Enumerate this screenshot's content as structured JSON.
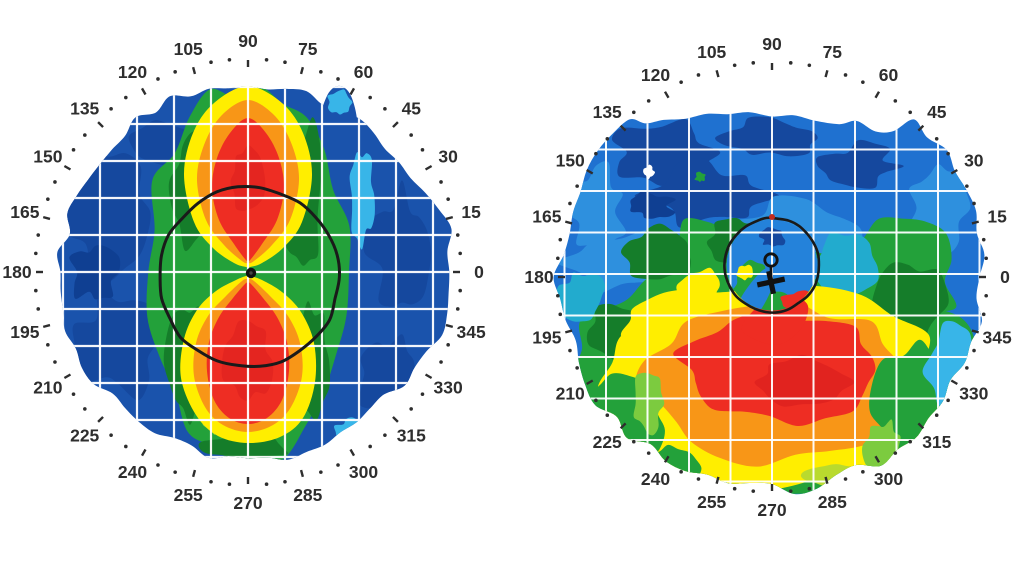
{
  "figure": {
    "kind": "corneal topography axial curvature maps, two panels side by side",
    "background": "#ffffff",
    "degree_labels": [
      0,
      15,
      30,
      45,
      60,
      75,
      90,
      105,
      120,
      135,
      150,
      165,
      180,
      195,
      210,
      225,
      240,
      255,
      270,
      285,
      300,
      315,
      330,
      345
    ],
    "label_step_deg": 15,
    "minor_tick_step_deg": 5,
    "maps": [
      {
        "id": "left",
        "pattern_label": "Symmetric vertical bow-tie pattern (regular astigmatism): red-orange steep lobes above and below centre along the 90-270 meridian, green vertical band, blue nasal and temporal periphery, black pupil circle with black apex marker."
      },
      {
        "id": "right",
        "pattern_label": "Inferior steepening pattern (keratoconus-like): flat blue superior cornea, green mid zone, large red steep zone below centre ringed by orange and yellow, small black pupil circle with circle-and-cross marker."
      }
    ],
    "palette": {
      "background": "#ffffff",
      "left_base_blue": "#1a53ac",
      "right_base_blue": "#1f71d0",
      "dark_blue": "#15489e",
      "navy": "#0f3f92",
      "light_blue": "#2e90de",
      "pupil_blue": "#2482da",
      "cyan": "#38b5e8",
      "teal": "#22abce",
      "green": "#23a13a",
      "dark_green": "#157d2a",
      "light_green": "#7ccb3f",
      "yellow_green": "#b9da2e",
      "yellow": "#ffee00",
      "orange": "#f89617",
      "red": "#ee2d23",
      "dark_red": "#d91d1d",
      "grid_line": "#ffffff",
      "pupil_ring": "#1a1a1a",
      "marker": "#111111",
      "red_tick": "#c22a1e",
      "tick": "#2e2e2e",
      "label_text": "#2e2e2e"
    }
  },
  "chart_data": [
    {
      "type": "heatmap",
      "panel": "left",
      "title": "",
      "coordinate_system": "polar",
      "angle_labels_deg": [
        0,
        15,
        30,
        45,
        60,
        75,
        90,
        105,
        120,
        135,
        150,
        165,
        180,
        195,
        210,
        225,
        240,
        255,
        270,
        285,
        300,
        315,
        330,
        345
      ],
      "minor_tick_step_deg": 5,
      "grid": "white square grid over map",
      "legend": "none visible",
      "color_order_flat_to_steep": [
        "dark_blue",
        "blue",
        "cyan",
        "green",
        "yellow",
        "orange",
        "red"
      ],
      "pattern": "symmetric vertical bow-tie (with-the-rule astigmatism)",
      "regions": {
        "periphery_nasal_temporal": "medium blue with darker blue patches and small cyan areas near 0 and 180 degrees",
        "mid_vertical_band": "green with dark green edges running from 90 toward 270 degrees",
        "steep_lobes": "red cores with orange and yellow borders above (about 60-120 deg) and below (about 240-300 deg) centre, meeting in a point at the apex",
        "overlay": "black pupil circle of roughly half the map radius centred on the apex, black apex marker"
      }
    },
    {
      "type": "heatmap",
      "panel": "right",
      "title": "",
      "coordinate_system": "polar",
      "angle_labels_deg": [
        0,
        15,
        30,
        45,
        60,
        75,
        90,
        105,
        120,
        135,
        150,
        165,
        180,
        195,
        210,
        225,
        240,
        255,
        270,
        285,
        300,
        315,
        330,
        345
      ],
      "minor_tick_step_deg": 5,
      "grid": "white square grid over map",
      "legend": "none visible",
      "color_order_flat_to_steep": [
        "dark_blue",
        "blue",
        "cyan",
        "green",
        "yellow",
        "orange",
        "red"
      ],
      "pattern": "inferior steepening (keratoconus-like)",
      "regions": {
        "superior_half": "flat medium blue with dark blue patches and a tiny white data gap",
        "mid_zone": "green with teal transitions, yellow patch left of the pupil circle",
        "inferior_steep_zone": "large red area below and right of the pupil ringed by orange then yellow",
        "inferior_periphery": "green rim with cyan at the lower right edge",
        "overlay": "small black pupil circle with dark blue spot inside, circle-and-cross marker, small red dot at top of circle"
      }
    }
  ]
}
